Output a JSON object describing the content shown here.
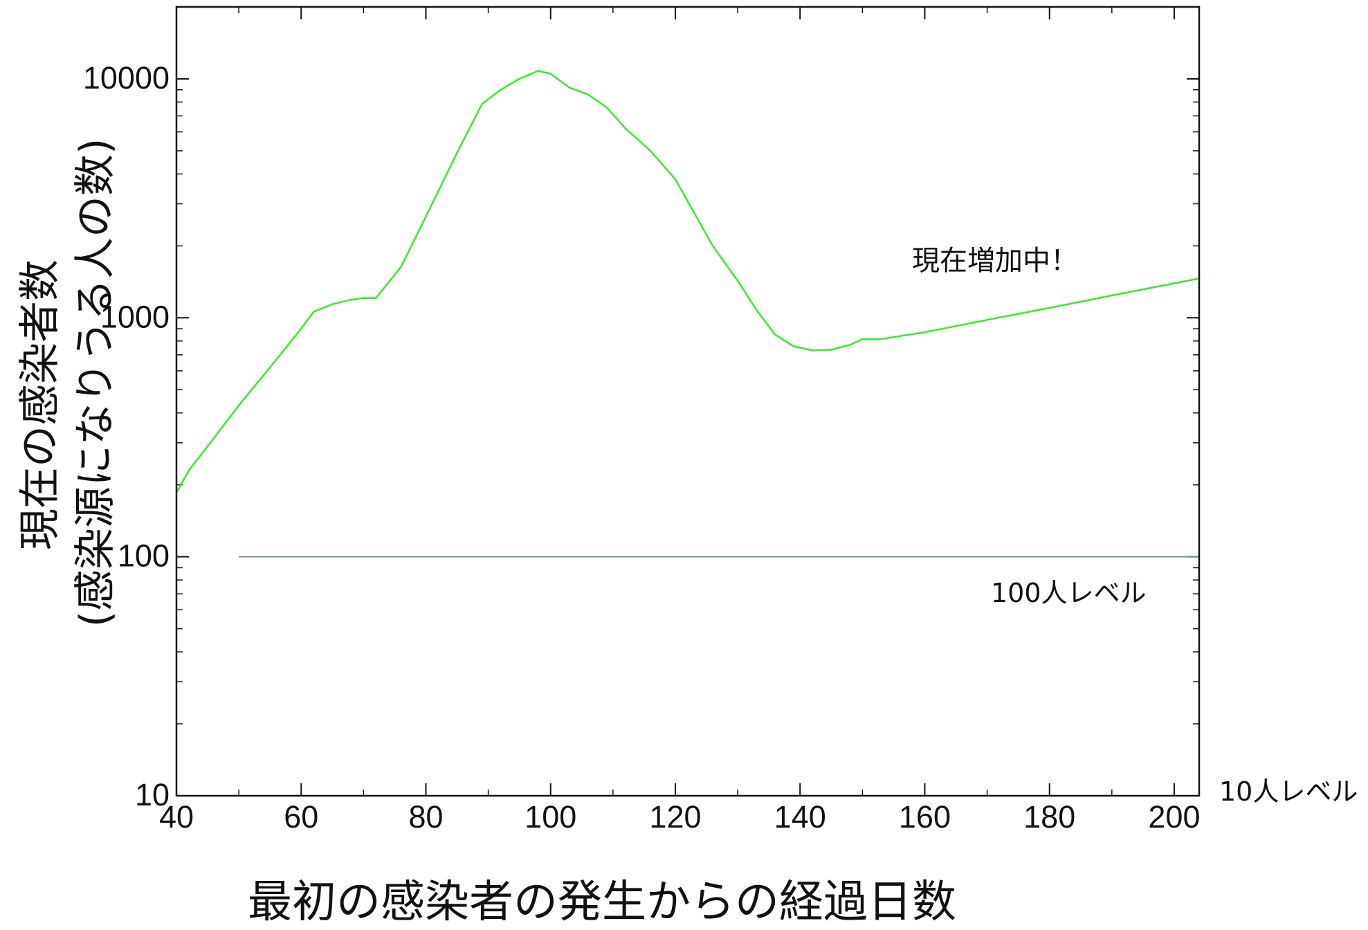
{
  "chart_data": {
    "type": "line",
    "title": "",
    "xlabel": "最初の感染者の発生からの経過日数",
    "ylabel": "現在の感染者数",
    "ylabel_sub": "(感染源になりうる人の数)",
    "xlim": [
      40,
      204
    ],
    "ylim": [
      10,
      20000
    ],
    "yscale": "log",
    "grid": false,
    "x_ticks": [
      40,
      60,
      80,
      100,
      120,
      140,
      160,
      180,
      200
    ],
    "x_tick_labels": [
      "40",
      "60",
      "80",
      "100",
      "120",
      "140",
      "160",
      "180",
      "200"
    ],
    "y_ticks": [
      10,
      100,
      1000,
      10000
    ],
    "y_tick_labels": [
      "10",
      "100",
      "1000",
      "10000"
    ],
    "series": [
      {
        "color": "#33ee22",
        "x": [
          40,
          42,
          45,
          50,
          55,
          60,
          62,
          65,
          68,
          70,
          72,
          76,
          80,
          85,
          89,
          92,
          95,
          98,
          100,
          103,
          106,
          109,
          112,
          116,
          120,
          126,
          130,
          133,
          136,
          139,
          142,
          145,
          148,
          150,
          153,
          160,
          170,
          180,
          190,
          204
        ],
        "y": [
          185,
          230,
          290,
          430,
          620,
          900,
          1060,
          1140,
          1190,
          1210,
          1210,
          1630,
          2650,
          4900,
          7850,
          9000,
          10000,
          10800,
          10500,
          9200,
          8600,
          7600,
          6200,
          5000,
          3800,
          2000,
          1430,
          1080,
          850,
          760,
          730,
          735,
          770,
          815,
          815,
          870,
          980,
          1100,
          1240,
          1460
        ]
      }
    ],
    "reference_lines": [
      {
        "y": 100,
        "x_from": 50,
        "x_to": 204,
        "color": "#6b8cae",
        "label": "100人レベル"
      },
      {
        "y": 10,
        "label": "10人レベル"
      }
    ],
    "annotations": [
      {
        "text": "現在増加中！",
        "color": "#ee2222",
        "x": 157,
        "y": 1500
      }
    ]
  }
}
